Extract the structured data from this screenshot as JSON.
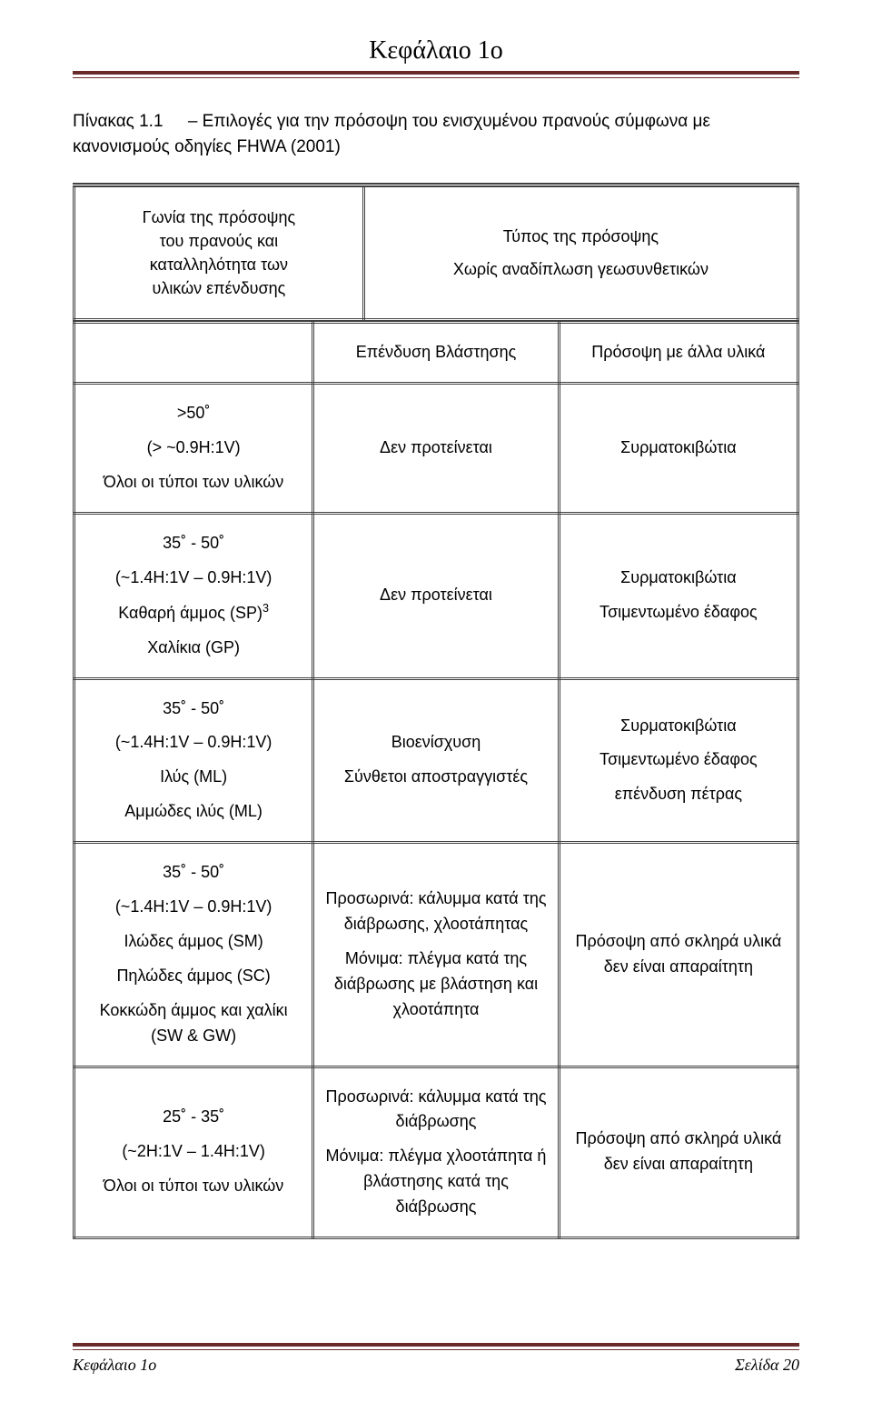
{
  "header": {
    "chapter": "Κεφάλαιο 1ο"
  },
  "caption": {
    "lead": "Πίνακας 1.1",
    "rest": "– Επιλογές για την πρόσοψη του ενισχυμένου πρανούς σύμφωνα με κανονισμούς οδηγίες FHWA (2001)"
  },
  "top": {
    "left_l1": "Γωνία της πρόσοψης",
    "left_l2": "του πρανούς και",
    "left_l3": "καταλληλότητα των",
    "left_l4": "υλικών επένδυσης",
    "right_l1": "Τύπος της πρόσοψης",
    "right_l2": "Χωρίς αναδίπλωση γεωσυνθετικών"
  },
  "inner_header": {
    "c2": "Επένδυση Βλάστησης",
    "c3": "Πρόσοψη με άλλα υλικά"
  },
  "rows": [
    {
      "c1_lines": [
        ">50˚",
        "(> ~0.9H:1V)",
        "Όλοι οι τύποι των υλικών"
      ],
      "c2_lines": [
        "Δεν προτείνεται"
      ],
      "c3_lines": [
        "Συρματοκιβώτια"
      ]
    },
    {
      "c1_lines": [
        "35˚ - 50˚",
        "(~1.4H:1V – 0.9H:1V)",
        "Καθαρή άμμος (SP)³",
        "Χαλίκια (GP)"
      ],
      "c1_sup_idx": 2,
      "c2_lines": [
        "Δεν προτείνεται"
      ],
      "c3_lines": [
        "Συρματοκιβώτια",
        "Τσιμεντωμένο έδαφος"
      ]
    },
    {
      "c1_lines": [
        "35˚ - 50˚",
        "(~1.4H:1V – 0.9H:1V)",
        "Ιλύς (ML)",
        "Αμμώδες ιλύς (ML)"
      ],
      "c2_lines": [
        "Βιοενίσχυση",
        "Σύνθετοι αποστραγγιστές"
      ],
      "c3_lines": [
        "Συρματοκιβώτια",
        "Τσιμεντωμένο έδαφος",
        "επένδυση πέτρας"
      ]
    },
    {
      "c1_lines": [
        "35˚ - 50˚",
        "(~1.4H:1V – 0.9H:1V)",
        "Ιλώδες άμμος (SM)",
        "Πηλώδες άμμος (SC)",
        "Κοκκώδη άμμος και χαλίκι (SW & GW)"
      ],
      "c2_lines": [
        "Προσωρινά: κάλυμμα κατά της διάβρωσης, χλοοτάπητας",
        "Μόνιμα:  πλέγμα κατά της διάβρωσης με βλάστηση και χλοοτάπητα"
      ],
      "c3_lines": [
        "Πρόσοψη από σκληρά υλικά δεν είναι απαραίτητη"
      ]
    },
    {
      "c1_lines": [
        "25˚ - 35˚",
        "(~2H:1V – 1.4H:1V)",
        "Όλοι οι τύποι των υλικών"
      ],
      "c2_lines": [
        "Προσωρινά: κάλυμμα κατά της διάβρωσης",
        "Μόνιμα: πλέγμα χλοοτάπητα ή βλάστησης κατά της διάβρωσης"
      ],
      "c3_lines": [
        "Πρόσοψη από σκληρά υλικά δεν είναι απαραίτητη"
      ]
    }
  ],
  "footer": {
    "left": "Κεφάλαιο 1ο",
    "right": "Σελίδα 20"
  },
  "colors": {
    "rule": "#6b2a2a",
    "border": "#404040",
    "text": "#000000",
    "background": "#ffffff"
  }
}
